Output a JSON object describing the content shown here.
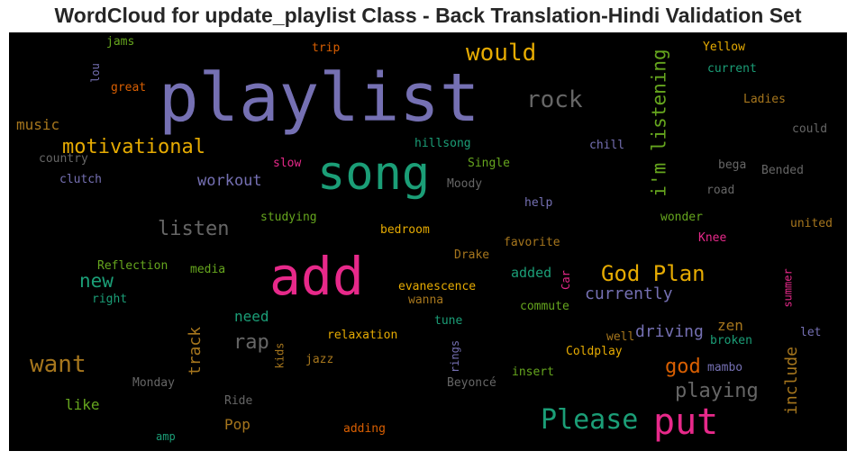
{
  "page": {
    "title": "WordCloud for update_playlist Class - Back Translation-Hindi Validation Set"
  },
  "chart_data": {
    "type": "wordcloud",
    "title": "WordCloud for update_playlist Class - Back Translation-Hindi Validation Set",
    "background": "#000000",
    "colormap": [
      "#7570b3",
      "#1b9e77",
      "#e7298a",
      "#e6ab02",
      "#a6761d",
      "#d95f02",
      "#66a61e",
      "#666666"
    ],
    "words": [
      {
        "text": "playlist",
        "color": "#7570b3",
        "vertical": false
      },
      {
        "text": "song",
        "color": "#1b9e77",
        "vertical": false
      },
      {
        "text": "add",
        "color": "#e7298a",
        "vertical": false
      },
      {
        "text": "put",
        "color": "#e7298a",
        "vertical": false
      },
      {
        "text": "Please",
        "color": "#1b9e77",
        "vertical": false
      },
      {
        "text": "i'm listening",
        "color": "#66a61e",
        "vertical": true
      },
      {
        "text": "would",
        "color": "#e6ab02",
        "vertical": false
      },
      {
        "text": "rock",
        "color": "#666666",
        "vertical": false
      },
      {
        "text": "motivational",
        "color": "#e6ab02",
        "vertical": false
      },
      {
        "text": "God Plan",
        "color": "#e6ab02",
        "vertical": false
      },
      {
        "text": "want",
        "color": "#a6761d",
        "vertical": false
      },
      {
        "text": "listen",
        "color": "#666666",
        "vertical": false
      },
      {
        "text": "rap",
        "color": "#666666",
        "vertical": false
      },
      {
        "text": "new",
        "color": "#1b9e77",
        "vertical": false
      },
      {
        "text": "playing",
        "color": "#666666",
        "vertical": false
      },
      {
        "text": "god",
        "color": "#d95f02",
        "vertical": false
      },
      {
        "text": "currently",
        "color": "#7570b3",
        "vertical": false
      },
      {
        "text": "driving",
        "color": "#7570b3",
        "vertical": false
      },
      {
        "text": "include",
        "color": "#a6761d",
        "vertical": true
      },
      {
        "text": "track",
        "color": "#a6761d",
        "vertical": true
      },
      {
        "text": "workout",
        "color": "#7570b3",
        "vertical": false
      },
      {
        "text": "music",
        "color": "#a6761d",
        "vertical": false
      },
      {
        "text": "need",
        "color": "#1b9e77",
        "vertical": false
      },
      {
        "text": "like",
        "color": "#66a61e",
        "vertical": false
      },
      {
        "text": "zen",
        "color": "#a6761d",
        "vertical": false
      },
      {
        "text": "added",
        "color": "#1b9e77",
        "vertical": false
      },
      {
        "text": "Pop",
        "color": "#a6761d",
        "vertical": false
      },
      {
        "text": "jams",
        "color": "#66a61e",
        "vertical": false
      },
      {
        "text": "trip",
        "color": "#d95f02",
        "vertical": false
      },
      {
        "text": "lou",
        "color": "#7570b3",
        "vertical": true
      },
      {
        "text": "great",
        "color": "#d95f02",
        "vertical": false
      },
      {
        "text": "Yellow",
        "color": "#e6ab02",
        "vertical": false
      },
      {
        "text": "current",
        "color": "#1b9e77",
        "vertical": false
      },
      {
        "text": "Ladies",
        "color": "#a6761d",
        "vertical": false
      },
      {
        "text": "could",
        "color": "#666666",
        "vertical": false
      },
      {
        "text": "hillsong",
        "color": "#1b9e77",
        "vertical": false
      },
      {
        "text": "chill",
        "color": "#7570b3",
        "vertical": false
      },
      {
        "text": "country",
        "color": "#666666",
        "vertical": false
      },
      {
        "text": "slow",
        "color": "#e7298a",
        "vertical": false
      },
      {
        "text": "Single",
        "color": "#66a61e",
        "vertical": false
      },
      {
        "text": "bega",
        "color": "#666666",
        "vertical": false
      },
      {
        "text": "Bended",
        "color": "#666666",
        "vertical": false
      },
      {
        "text": "clutch",
        "color": "#7570b3",
        "vertical": false
      },
      {
        "text": "Moody",
        "color": "#666666",
        "vertical": false
      },
      {
        "text": "road",
        "color": "#666666",
        "vertical": false
      },
      {
        "text": "help",
        "color": "#7570b3",
        "vertical": false
      },
      {
        "text": "studying",
        "color": "#66a61e",
        "vertical": false
      },
      {
        "text": "wonder",
        "color": "#66a61e",
        "vertical": false
      },
      {
        "text": "bedroom",
        "color": "#e6ab02",
        "vertical": false
      },
      {
        "text": "united",
        "color": "#a6761d",
        "vertical": false
      },
      {
        "text": "Knee",
        "color": "#e7298a",
        "vertical": false
      },
      {
        "text": "favorite",
        "color": "#a6761d",
        "vertical": false
      },
      {
        "text": "Drake",
        "color": "#a6761d",
        "vertical": false
      },
      {
        "text": "Reflection",
        "color": "#66a61e",
        "vertical": false
      },
      {
        "text": "media",
        "color": "#66a61e",
        "vertical": false
      },
      {
        "text": "Car",
        "color": "#e7298a",
        "vertical": true
      },
      {
        "text": "summer",
        "color": "#e7298a",
        "vertical": true
      },
      {
        "text": "right",
        "color": "#1b9e77",
        "vertical": false
      },
      {
        "text": "evanescence",
        "color": "#e6ab02",
        "vertical": false
      },
      {
        "text": "wanna",
        "color": "#a6761d",
        "vertical": false
      },
      {
        "text": "commute",
        "color": "#66a61e",
        "vertical": false
      },
      {
        "text": "tune",
        "color": "#1b9e77",
        "vertical": false
      },
      {
        "text": "kids",
        "color": "#a6761d",
        "vertical": true
      },
      {
        "text": "relaxation",
        "color": "#e6ab02",
        "vertical": false
      },
      {
        "text": "rings",
        "color": "#7570b3",
        "vertical": true
      },
      {
        "text": "well",
        "color": "#a6761d",
        "vertical": false
      },
      {
        "text": "let",
        "color": "#7570b3",
        "vertical": false
      },
      {
        "text": "broken",
        "color": "#1b9e77",
        "vertical": false
      },
      {
        "text": "Coldplay",
        "color": "#e6ab02",
        "vertical": false
      },
      {
        "text": "jazz",
        "color": "#a6761d",
        "vertical": false
      },
      {
        "text": "insert",
        "color": "#66a61e",
        "vertical": false
      },
      {
        "text": "mambo",
        "color": "#7570b3",
        "vertical": false
      },
      {
        "text": "Monday",
        "color": "#666666",
        "vertical": false
      },
      {
        "text": "Ride",
        "color": "#666666",
        "vertical": false
      },
      {
        "text": "Beyoncé",
        "color": "#666666",
        "vertical": false
      },
      {
        "text": "amp",
        "color": "#1b9e77",
        "vertical": false
      },
      {
        "text": "adding",
        "color": "#d95f02",
        "vertical": false
      }
    ]
  }
}
